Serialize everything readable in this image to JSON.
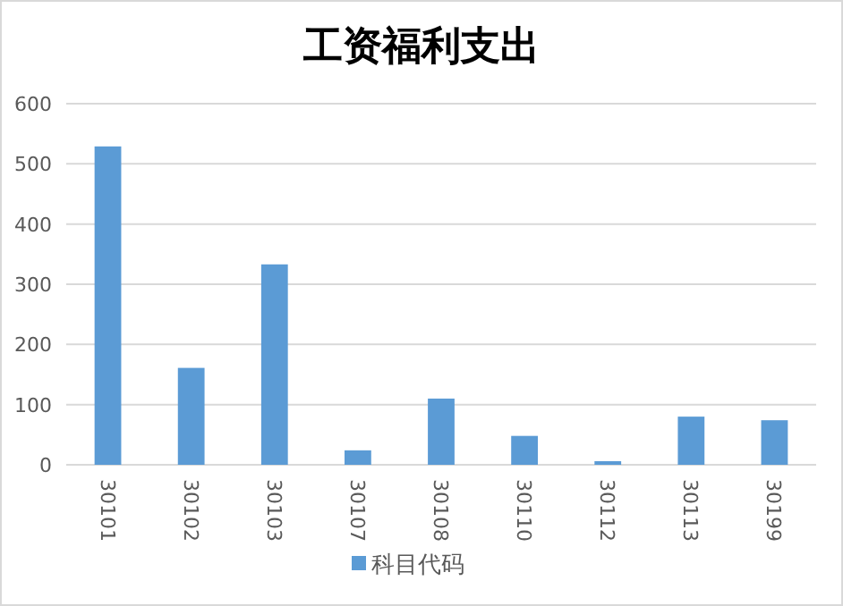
{
  "chart_data": {
    "type": "bar",
    "title": "工资福利支出",
    "categories": [
      "30101",
      "30102",
      "30103",
      "30107",
      "30108",
      "30110",
      "30112",
      "30113",
      "30199"
    ],
    "series": [
      {
        "name": "科目代码",
        "color": "#5b9bd5",
        "values": [
          529,
          161,
          333,
          24,
          110,
          48,
          6,
          80,
          74
        ]
      }
    ],
    "ylim": [
      0,
      600
    ],
    "yticks": [
      0,
      100,
      200,
      300,
      400,
      500,
      600
    ],
    "grid": "y",
    "legend": "bottom"
  }
}
